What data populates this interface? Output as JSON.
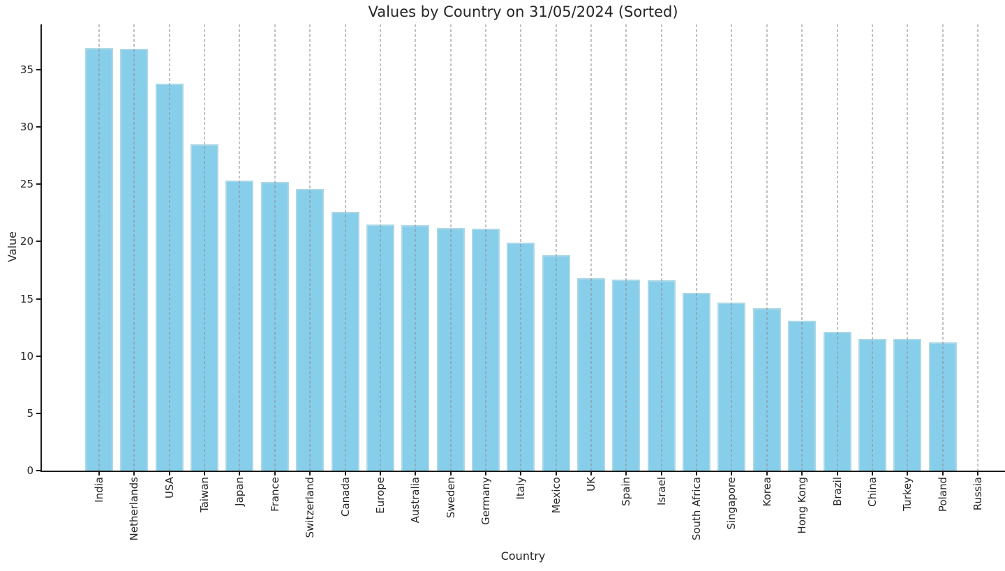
{
  "chart_data": {
    "type": "bar",
    "title": "Values by Country on 31/05/2024 (Sorted)",
    "xlabel": "Country",
    "ylabel": "Value",
    "categories": [
      "India",
      "Netherlands",
      "USA",
      "Taiwan",
      "Japan",
      "France",
      "Switzerland",
      "Canada",
      "Europe",
      "Australia",
      "Sweden",
      "Germany",
      "Italy",
      "Mexico",
      "UK",
      "Spain",
      "Israel",
      "South Africa",
      "Singapore",
      "Korea",
      "Hong Kong",
      "Brazil",
      "China",
      "Turkey",
      "Poland",
      "Russia"
    ],
    "values": [
      36.9,
      36.8,
      33.8,
      28.5,
      25.3,
      25.2,
      24.6,
      22.6,
      21.5,
      21.4,
      21.2,
      21.1,
      19.9,
      18.8,
      16.8,
      16.7,
      16.6,
      15.5,
      14.7,
      14.2,
      13.1,
      12.1,
      11.5,
      11.5,
      11.2,
      0
    ],
    "ylim": [
      0,
      38.96
    ],
    "yticks": [
      0,
      5,
      10,
      15,
      20,
      25,
      30,
      35
    ],
    "grid": "vertical-dashed-over-bars",
    "legend": "none",
    "bar_color": "#87CEEB",
    "bar_edge_color": "#ADD8E6",
    "grid_color": "#c8c8c8",
    "axis_color": "#1c1c1c",
    "text_color": "#262626",
    "x_tick_label_rotation_deg": 90
  }
}
